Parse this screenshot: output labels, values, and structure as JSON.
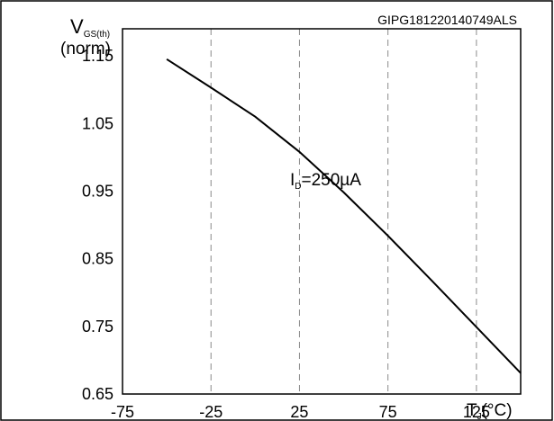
{
  "chart_data": {
    "type": "line",
    "ref_code": "GIPG181220140749ALS",
    "ylabel": {
      "main": "V",
      "sub": "GS(th)",
      "line2": "(norm)"
    },
    "xlabel": {
      "main": "T",
      "sub": "J",
      "unit": "(°C)"
    },
    "xlim": [
      -75,
      150
    ],
    "ylim": [
      0.65,
      1.19
    ],
    "x_ticks": [
      -75,
      -25,
      25,
      75,
      125
    ],
    "x_tick_labels": [
      "-75",
      "-25",
      "25",
      "75",
      "125"
    ],
    "y_ticks": [
      0.65,
      0.75,
      0.85,
      0.95,
      1.05,
      1.15
    ],
    "y_tick_labels": [
      "0.65",
      "0.75",
      "0.85",
      "0.95",
      "1.05",
      "1.15"
    ],
    "grid": "vertical dashed",
    "series": [
      {
        "annotation": {
          "main": "I",
          "sub": "D",
          "rest": "=250µA"
        },
        "x": [
          -50,
          -25,
          0,
          25,
          50,
          75,
          100,
          125,
          150
        ],
        "y": [
          1.145,
          1.103,
          1.06,
          1.008,
          0.948,
          0.884,
          0.817,
          0.749,
          0.681
        ]
      }
    ]
  }
}
